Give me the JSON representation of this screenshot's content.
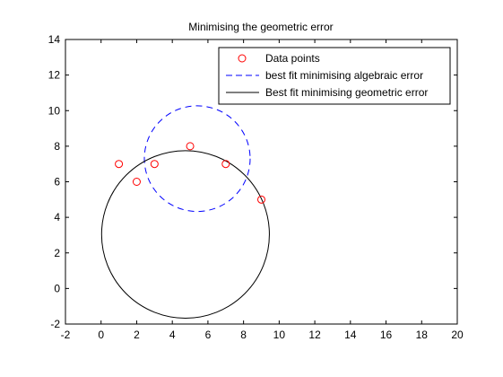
{
  "chart_data": {
    "type": "scatter",
    "title": "Minimising the geometric error",
    "xlabel": "",
    "ylabel": "",
    "xlim": [
      -2,
      20
    ],
    "ylim": [
      -2,
      14
    ],
    "x_ticks": [
      -2,
      0,
      2,
      4,
      6,
      8,
      10,
      12,
      14,
      16,
      18,
      20
    ],
    "y_ticks": [
      -2,
      0,
      2,
      4,
      6,
      8,
      10,
      12,
      14
    ],
    "grid": false,
    "legend_position": "top-right",
    "series": [
      {
        "name": "Data points",
        "kind": "markers",
        "marker": "circle",
        "color": "#ff0000",
        "points": [
          [
            1,
            7
          ],
          [
            2,
            6
          ],
          [
            3,
            7
          ],
          [
            5,
            8
          ],
          [
            7,
            7
          ],
          [
            9,
            5
          ]
        ]
      },
      {
        "name": "best fit minimising algebraic error",
        "kind": "circle",
        "linestyle": "dashed",
        "color": "#0000ff",
        "center": [
          5.4,
          7.3
        ],
        "radius": 2.97
      },
      {
        "name": "Best fit minimising geometric error",
        "kind": "circle",
        "linestyle": "solid",
        "color": "#000000",
        "center": [
          4.74,
          3.04
        ],
        "radius": 4.71
      }
    ]
  }
}
